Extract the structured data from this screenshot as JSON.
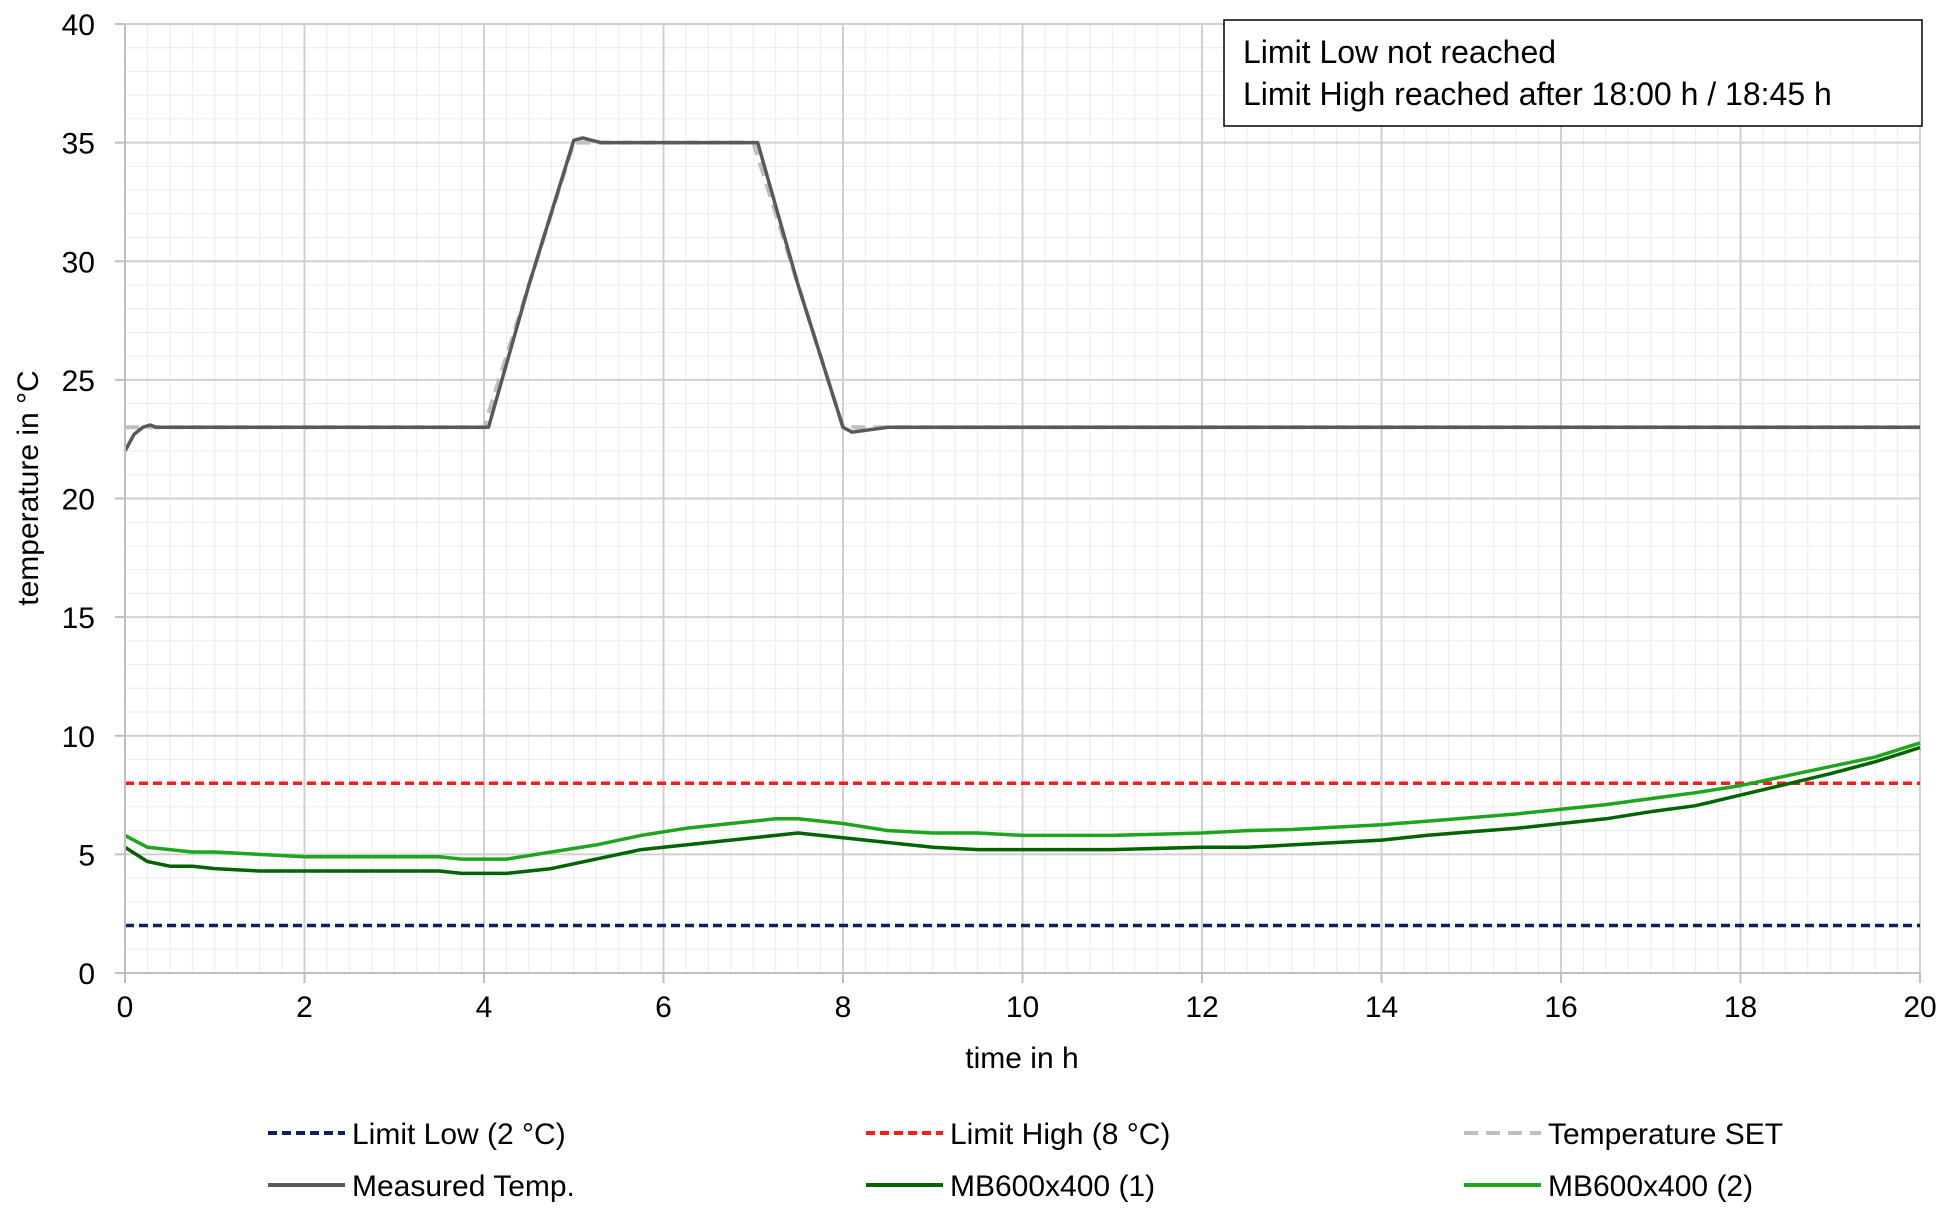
{
  "chart_data": {
    "type": "line",
    "xlabel": "time in h",
    "ylabel": "temperature in °C",
    "xlim": [
      0,
      20
    ],
    "ylim": [
      0,
      40
    ],
    "xticks": [
      "0",
      "2",
      "4",
      "6",
      "8",
      "10",
      "12",
      "14",
      "16",
      "18",
      "20"
    ],
    "yticks": [
      "0",
      "5",
      "10",
      "15",
      "20",
      "25",
      "30",
      "35",
      "40"
    ],
    "grid": "major and minor",
    "legend_position": "bottom",
    "annotation": {
      "lines": [
        "Limit Low not reached",
        "Limit High reached after 18:00 h / 18:45 h"
      ],
      "position": "top-right"
    },
    "series": [
      {
        "name": "Limit Low (2 °C)",
        "color": "#0d2160",
        "style": "dashed",
        "x": [
          0,
          20
        ],
        "y": [
          2,
          2
        ]
      },
      {
        "name": "Limit High (8 °C)",
        "color": "#ff1a1a",
        "style": "dashed",
        "x": [
          0,
          20
        ],
        "y": [
          8,
          8
        ]
      },
      {
        "name": "Temperature SET",
        "color": "#bfbfbf",
        "style": "dashed",
        "x": [
          0,
          0.05,
          4.0,
          5.0,
          7.0,
          8.0,
          20
        ],
        "y": [
          23,
          23,
          23,
          35,
          35,
          23,
          23
        ]
      },
      {
        "name": "Measured Temp.",
        "color": "#595959",
        "style": "solid",
        "x": [
          0,
          0.1,
          0.2,
          0.28,
          0.35,
          1,
          2,
          3,
          3.5,
          4.05,
          4.5,
          5.0,
          5.1,
          5.3,
          6,
          7.05,
          7.5,
          8.0,
          8.1,
          8.5,
          10,
          14,
          18,
          20
        ],
        "y": [
          22.0,
          22.7,
          23.0,
          23.1,
          23.0,
          23.0,
          23.0,
          23.0,
          23.0,
          23.0,
          29.0,
          35.1,
          35.2,
          35.0,
          35.0,
          35.0,
          29.0,
          23.0,
          22.8,
          23.0,
          23.0,
          23.0,
          23.0,
          23.0
        ]
      },
      {
        "name": "MB600x400 (1)",
        "color": "#006400",
        "style": "solid",
        "x": [
          0,
          0.25,
          0.5,
          0.75,
          1,
          1.5,
          2,
          3,
          3.5,
          3.75,
          4.25,
          4.75,
          5.25,
          5.75,
          6.25,
          6.75,
          7.5,
          8,
          8.5,
          9,
          9.5,
          10,
          11,
          12,
          12.5,
          13,
          13.5,
          14,
          14.5,
          15,
          15.5,
          16,
          16.5,
          17,
          17.5,
          18,
          18.5,
          19,
          19.5,
          20
        ],
        "y": [
          5.3,
          4.7,
          4.5,
          4.5,
          4.4,
          4.3,
          4.3,
          4.3,
          4.3,
          4.2,
          4.2,
          4.4,
          4.8,
          5.2,
          5.4,
          5.6,
          5.9,
          5.7,
          5.5,
          5.3,
          5.2,
          5.2,
          5.2,
          5.3,
          5.3,
          5.4,
          5.5,
          5.6,
          5.8,
          5.95,
          6.1,
          6.3,
          6.5,
          6.8,
          7.05,
          7.5,
          7.95,
          8.4,
          8.9,
          9.5
        ]
      },
      {
        "name": "MB600x400 (2)",
        "color": "#1ea51e",
        "style": "solid",
        "x": [
          0,
          0.25,
          0.5,
          0.75,
          1,
          1.5,
          2,
          3,
          3.5,
          3.75,
          4.25,
          4.75,
          5.25,
          5.75,
          6.25,
          6.75,
          7.25,
          7.5,
          8,
          8.5,
          9,
          9.5,
          10,
          11,
          12,
          12.5,
          13,
          13.5,
          14,
          14.5,
          15,
          15.5,
          16,
          16.5,
          17,
          17.5,
          18,
          18.5,
          19,
          19.5,
          20
        ],
        "y": [
          5.8,
          5.3,
          5.2,
          5.1,
          5.1,
          5.0,
          4.9,
          4.9,
          4.9,
          4.8,
          4.8,
          5.1,
          5.4,
          5.8,
          6.1,
          6.3,
          6.5,
          6.5,
          6.3,
          6.0,
          5.9,
          5.9,
          5.8,
          5.8,
          5.9,
          6.0,
          6.05,
          6.15,
          6.25,
          6.4,
          6.55,
          6.7,
          6.9,
          7.1,
          7.35,
          7.6,
          7.9,
          8.3,
          8.7,
          9.1,
          9.7
        ]
      }
    ]
  }
}
